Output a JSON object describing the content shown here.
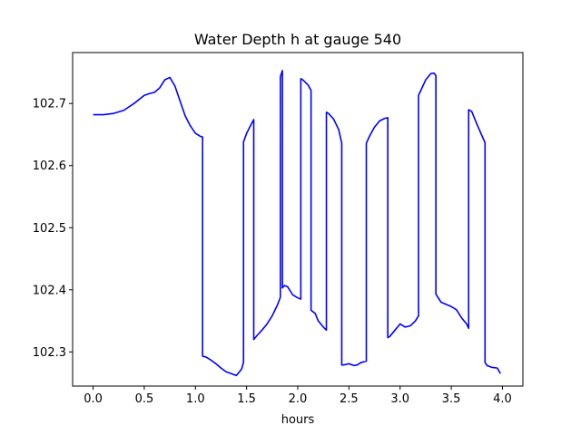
{
  "chart_data": {
    "type": "line",
    "title": "Water Depth h at gauge 540",
    "xlabel": "hours",
    "ylabel": "",
    "xlim": [
      -0.2,
      4.2
    ],
    "ylim": [
      102.245,
      102.782
    ],
    "x_ticks": [
      0.0,
      0.5,
      1.0,
      1.5,
      2.0,
      2.5,
      3.0,
      3.5,
      4.0
    ],
    "x_tick_labels": [
      "0.0",
      "0.5",
      "1.0",
      "1.5",
      "2.0",
      "2.5",
      "3.0",
      "3.5",
      "4.0"
    ],
    "y_ticks": [
      102.3,
      102.4,
      102.5,
      102.6,
      102.7
    ],
    "y_tick_labels": [
      "102.3",
      "102.4",
      "102.5",
      "102.6",
      "102.7"
    ],
    "grid": false,
    "series": [
      {
        "color": "#0000ff",
        "x": [
          0.0,
          0.1,
          0.2,
          0.3,
          0.4,
          0.5,
          0.55,
          0.6,
          0.65,
          0.7,
          0.75,
          0.8,
          0.85,
          0.9,
          0.95,
          1.0,
          1.05,
          1.07,
          1.07,
          1.1,
          1.15,
          1.2,
          1.25,
          1.3,
          1.35,
          1.4,
          1.45,
          1.47,
          1.47,
          1.5,
          1.55,
          1.57,
          1.57,
          1.6,
          1.65,
          1.7,
          1.75,
          1.8,
          1.83,
          1.83,
          1.85,
          1.85,
          1.87,
          1.9,
          1.95,
          2.0,
          2.03,
          2.03,
          2.05,
          2.1,
          2.13,
          2.13,
          2.17,
          2.2,
          2.25,
          2.28,
          2.28,
          2.3,
          2.35,
          2.4,
          2.43,
          2.43,
          2.45,
          2.5,
          2.55,
          2.58,
          2.62,
          2.67,
          2.67,
          2.7,
          2.75,
          2.8,
          2.85,
          2.88,
          2.88,
          2.9,
          2.95,
          3.0,
          3.05,
          3.1,
          3.15,
          3.18,
          3.18,
          3.2,
          3.25,
          3.3,
          3.33,
          3.35,
          3.35,
          3.4,
          3.5,
          3.55,
          3.6,
          3.65,
          3.67,
          3.67,
          3.7,
          3.75,
          3.8,
          3.83,
          3.83,
          3.85,
          3.9,
          3.95,
          3.98
        ],
        "y": [
          102.682,
          102.682,
          102.684,
          102.689,
          102.7,
          102.713,
          102.716,
          102.718,
          102.725,
          102.738,
          102.742,
          102.728,
          102.704,
          102.68,
          102.664,
          102.652,
          102.647,
          102.646,
          102.293,
          102.292,
          102.287,
          102.281,
          102.274,
          102.268,
          102.265,
          102.262,
          102.272,
          102.283,
          102.638,
          102.652,
          102.668,
          102.674,
          102.32,
          102.326,
          102.335,
          102.345,
          102.358,
          102.375,
          102.388,
          102.743,
          102.753,
          102.403,
          102.407,
          102.405,
          102.392,
          102.387,
          102.385,
          102.74,
          102.738,
          102.73,
          102.721,
          102.367,
          102.362,
          102.35,
          102.34,
          102.335,
          102.686,
          102.684,
          102.675,
          102.658,
          102.636,
          102.279,
          102.279,
          102.281,
          102.278,
          102.279,
          102.283,
          102.285,
          102.636,
          102.647,
          102.662,
          102.672,
          102.676,
          102.677,
          102.323,
          102.325,
          102.335,
          102.345,
          102.34,
          102.342,
          102.35,
          102.358,
          102.713,
          102.72,
          102.738,
          102.748,
          102.749,
          102.745,
          102.393,
          102.38,
          102.373,
          102.368,
          102.355,
          102.345,
          102.338,
          102.69,
          102.687,
          102.667,
          102.648,
          102.637,
          102.283,
          102.278,
          102.275,
          102.274,
          102.265
        ]
      }
    ]
  }
}
